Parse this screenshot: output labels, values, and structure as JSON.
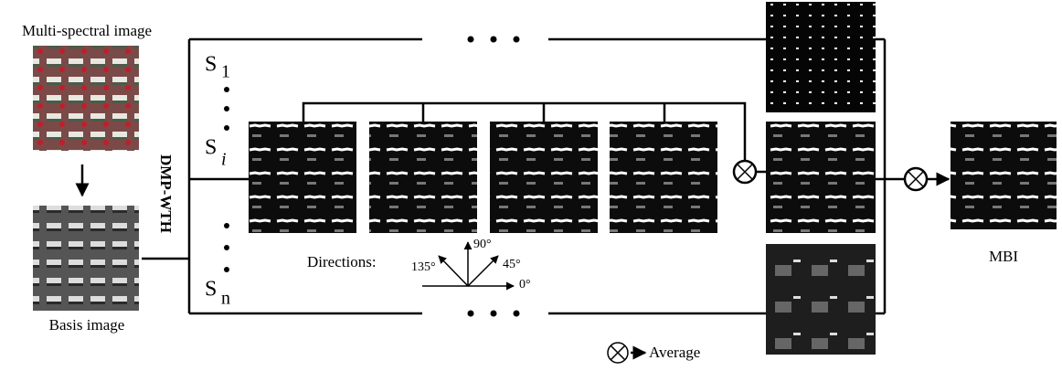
{
  "input_label": "Multi-spectral image",
  "basis_label": "Basis image",
  "operator_label": "DMP-WTH",
  "scales": [
    {
      "base": "S",
      "sub": "1"
    },
    {
      "base": "S",
      "sub": "i"
    },
    {
      "base": "S",
      "sub": "n"
    }
  ],
  "directions": {
    "label": "Directions:",
    "angles": [
      "135°",
      "90°",
      "45°",
      "0°"
    ]
  },
  "output_label": "MBI",
  "legend": "Average"
}
